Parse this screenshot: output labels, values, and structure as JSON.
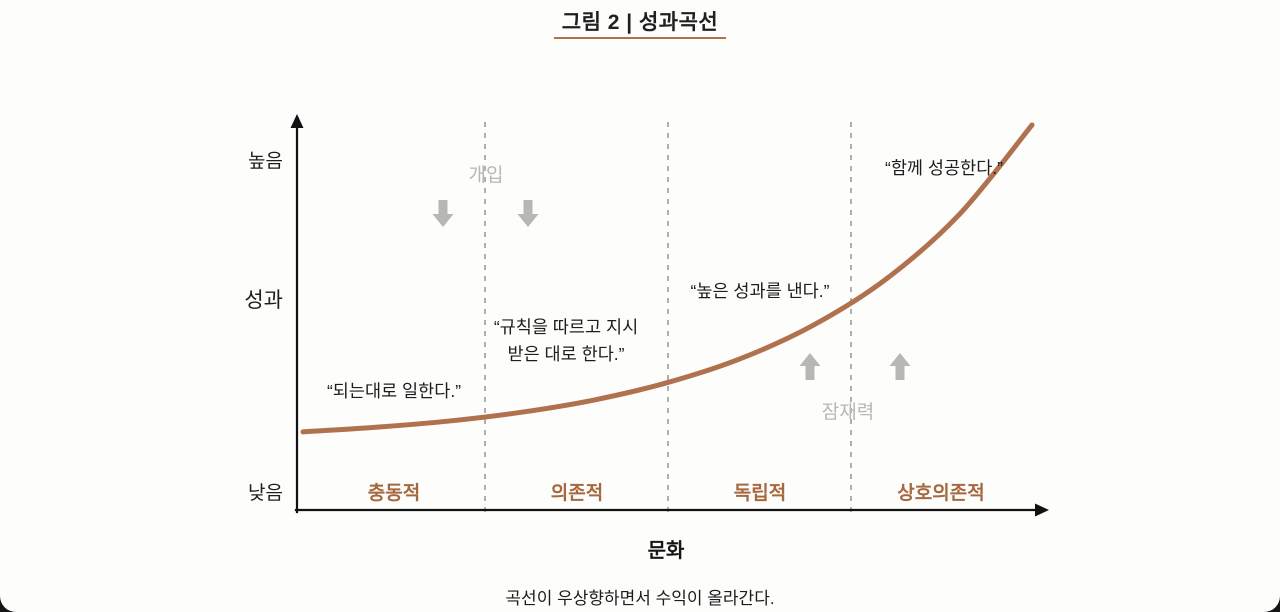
{
  "title": "그림 2 | 성과곡선",
  "caption": "곡선이 우상향하면서 수익이 올라간다.",
  "axis": {
    "y_title": "성과",
    "y_max_label": "높음",
    "y_min_label": "낮음",
    "x_title": "문화"
  },
  "labels": {
    "intervention": "개입",
    "potential": "잠재력"
  },
  "quotes": {
    "impulsive": "“되는대로 일한다.”",
    "dependent_line1": "“규칙을 따르고 지시",
    "dependent_line2": "받은 대로 한다.”",
    "independent": "“높은 성과를 낸다.”",
    "interdependent": "“함께 성공한다.”"
  },
  "categories": [
    "충동적",
    "의존적",
    "독립적",
    "상호의존적"
  ],
  "colors": {
    "curve": "#b0714e",
    "accent_text": "#a5683f",
    "gray": "#b7b7b6",
    "ink": "#1d1d1d"
  },
  "chart_data": {
    "type": "line",
    "title": "성과곡선",
    "xlabel": "문화",
    "ylabel": "성과",
    "x_axis_kind": "conceptual stages of culture",
    "categories": [
      "충동적",
      "의존적",
      "독립적",
      "상호의존적"
    ],
    "y_range_labels": [
      "낮음",
      "높음"
    ],
    "ylim": [
      0,
      100
    ],
    "grid": false,
    "curve_t": [
      0,
      0.1,
      0.2,
      0.3,
      0.4,
      0.5,
      0.6,
      0.7,
      0.8,
      0.9,
      1.0
    ],
    "curve_y": [
      20.3,
      21.5,
      23.1,
      25.4,
      28.6,
      33.1,
      39.3,
      48.0,
      60.0,
      76.7,
      100
    ],
    "annotations": [
      {
        "section": "충동적",
        "text": "“되는대로 일한다.”"
      },
      {
        "section": "의존적",
        "text": "“규칙을 따르고 지시 받은 대로 한다.”"
      },
      {
        "section": "독립적",
        "text": "“높은 성과를 낸다.”"
      },
      {
        "section": "상호의존적",
        "text": "“함께 성공한다.”"
      },
      {
        "type": "down-arrows",
        "text": "개입",
        "location": "충동적/의존적 경계"
      },
      {
        "type": "up-arrows",
        "text": "잠재력",
        "location": "독립적/상호의존적 경계"
      }
    ]
  }
}
